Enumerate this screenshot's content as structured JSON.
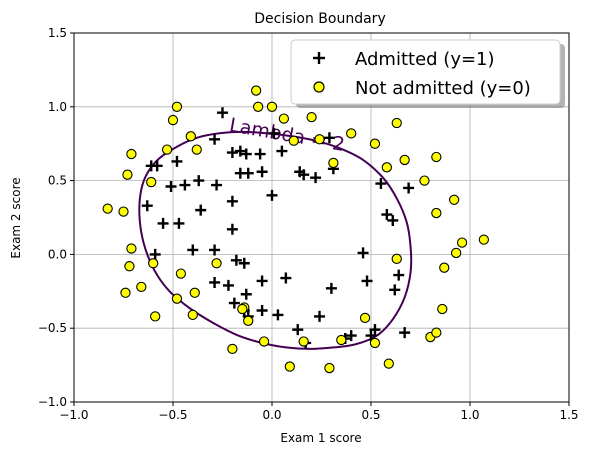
{
  "chart_data": {
    "type": "scatter",
    "title": "Decision Boundary",
    "xlabel": "Exam 1 score",
    "ylabel": "Exam 2 score",
    "xlim": [
      -1.0,
      1.5
    ],
    "ylim": [
      -1.0,
      1.5
    ],
    "xticks": [
      -1.0,
      -0.5,
      0.0,
      0.5,
      1.0,
      1.5
    ],
    "yticks": [
      -1.0,
      -0.5,
      0.0,
      0.5,
      1.0,
      1.5
    ],
    "xtick_labels": [
      "−1.0",
      "−0.5",
      "0.0",
      "0.5",
      "1.0",
      "1.5"
    ],
    "ytick_labels": [
      "−1.0",
      "−0.5",
      "0.0",
      "0.5",
      "1.0",
      "1.5"
    ],
    "grid": true,
    "legend_position": "top-right",
    "series": [
      {
        "name": "Admitted (y=1)",
        "marker": "plus",
        "color": "#000000",
        "points": [
          [
            -0.25,
            0.96
          ],
          [
            -0.29,
            0.78
          ],
          [
            -0.48,
            0.63
          ],
          [
            -0.61,
            0.6
          ],
          [
            -0.58,
            0.6
          ],
          [
            -0.2,
            0.69
          ],
          [
            -0.16,
            0.7
          ],
          [
            -0.13,
            0.68
          ],
          [
            -0.06,
            0.68
          ],
          [
            0.01,
            0.82
          ],
          [
            0.05,
            0.7
          ],
          [
            0.14,
            0.56
          ],
          [
            0.16,
            0.54
          ],
          [
            0.22,
            0.52
          ],
          [
            0.29,
            0.79
          ],
          [
            0.31,
            0.58
          ],
          [
            -0.51,
            0.46
          ],
          [
            -0.44,
            0.47
          ],
          [
            -0.37,
            0.5
          ],
          [
            -0.28,
            0.47
          ],
          [
            -0.16,
            0.55
          ],
          [
            -0.12,
            0.55
          ],
          [
            -0.05,
            0.56
          ],
          [
            -0.63,
            0.33
          ],
          [
            -0.55,
            0.21
          ],
          [
            -0.47,
            0.21
          ],
          [
            -0.36,
            0.3
          ],
          [
            -0.2,
            0.36
          ],
          [
            0.0,
            0.4
          ],
          [
            0.69,
            0.45
          ],
          [
            0.55,
            0.48
          ],
          [
            0.58,
            0.27
          ],
          [
            0.61,
            0.23
          ],
          [
            -0.59,
            0.0
          ],
          [
            -0.4,
            0.03
          ],
          [
            -0.29,
            0.03
          ],
          [
            -0.2,
            0.17
          ],
          [
            -0.18,
            -0.04
          ],
          [
            -0.14,
            -0.06
          ],
          [
            -0.29,
            -0.19
          ],
          [
            -0.22,
            -0.21
          ],
          [
            -0.19,
            -0.33
          ],
          [
            -0.13,
            -0.27
          ],
          [
            -0.05,
            -0.18
          ],
          [
            0.07,
            -0.16
          ],
          [
            0.3,
            -0.23
          ],
          [
            0.46,
            0.01
          ],
          [
            0.48,
            -0.18
          ],
          [
            0.64,
            -0.14
          ],
          [
            0.62,
            -0.24
          ],
          [
            -0.14,
            -0.38
          ],
          [
            -0.12,
            -0.42
          ],
          [
            -0.05,
            -0.38
          ],
          [
            0.03,
            -0.41
          ],
          [
            0.13,
            -0.51
          ],
          [
            0.17,
            -0.6
          ],
          [
            0.24,
            -0.42
          ],
          [
            0.37,
            -0.57
          ],
          [
            0.4,
            -0.55
          ],
          [
            0.5,
            -0.55
          ],
          [
            0.52,
            -0.51
          ],
          [
            0.67,
            -0.53
          ]
        ]
      },
      {
        "name": "Not admitted (y=0)",
        "marker": "circle",
        "color": "#ffff00",
        "edge": "#000000",
        "points": [
          [
            -0.83,
            0.31
          ],
          [
            -0.75,
            0.29
          ],
          [
            -0.73,
            0.54
          ],
          [
            -0.71,
            0.68
          ],
          [
            -0.71,
            0.04
          ],
          [
            -0.72,
            -0.08
          ],
          [
            -0.66,
            -0.22
          ],
          [
            -0.74,
            -0.26
          ],
          [
            -0.61,
            0.49
          ],
          [
            -0.6,
            -0.06
          ],
          [
            -0.59,
            -0.42
          ],
          [
            -0.53,
            0.71
          ],
          [
            -0.5,
            0.91
          ],
          [
            -0.48,
            1.0
          ],
          [
            -0.46,
            -0.13
          ],
          [
            -0.48,
            -0.3
          ],
          [
            -0.41,
            0.8
          ],
          [
            -0.38,
            0.71
          ],
          [
            -0.39,
            -0.26
          ],
          [
            -0.4,
            -0.41
          ],
          [
            -0.28,
            -0.06
          ],
          [
            -0.14,
            -0.36
          ],
          [
            -0.12,
            -0.45
          ],
          [
            -0.2,
            -0.64
          ],
          [
            -0.07,
            1.0
          ],
          [
            -0.08,
            1.11
          ],
          [
            0.0,
            1.0
          ],
          [
            0.06,
            0.92
          ],
          [
            0.11,
            0.77
          ],
          [
            0.2,
            0.93
          ],
          [
            0.24,
            0.78
          ],
          [
            0.31,
            0.62
          ],
          [
            0.4,
            0.82
          ],
          [
            0.52,
            0.75
          ],
          [
            0.58,
            0.59
          ],
          [
            0.63,
            0.89
          ],
          [
            0.67,
            0.64
          ],
          [
            0.77,
            0.5
          ],
          [
            0.83,
            0.66
          ],
          [
            0.83,
            0.28
          ],
          [
            0.92,
            0.37
          ],
          [
            0.93,
            0.01
          ],
          [
            0.96,
            0.08
          ],
          [
            1.07,
            0.1
          ],
          [
            0.87,
            -0.09
          ],
          [
            0.63,
            -0.03
          ],
          [
            0.47,
            -0.43
          ],
          [
            0.35,
            -0.58
          ],
          [
            0.52,
            -0.6
          ],
          [
            0.59,
            -0.74
          ],
          [
            0.8,
            -0.56
          ],
          [
            0.83,
            -0.53
          ],
          [
            0.86,
            -0.37
          ],
          [
            0.29,
            -0.77
          ],
          [
            0.16,
            -0.59
          ],
          [
            0.09,
            -0.76
          ],
          [
            -0.04,
            -0.59
          ],
          [
            -0.15,
            -0.37
          ]
        ]
      }
    ],
    "boundary": {
      "label": "Lambda = 2",
      "color": "#440154",
      "points": [
        [
          -0.63,
          0.55
        ],
        [
          -0.57,
          0.65
        ],
        [
          -0.48,
          0.73
        ],
        [
          -0.38,
          0.79
        ],
        [
          -0.27,
          0.82
        ],
        [
          -0.15,
          0.83
        ],
        [
          -0.02,
          0.82
        ],
        [
          0.1,
          0.8
        ],
        [
          0.22,
          0.77
        ],
        [
          0.34,
          0.72
        ],
        [
          0.46,
          0.64
        ],
        [
          0.56,
          0.52
        ],
        [
          0.63,
          0.38
        ],
        [
          0.68,
          0.22
        ],
        [
          0.7,
          0.05
        ],
        [
          0.7,
          -0.12
        ],
        [
          0.67,
          -0.29
        ],
        [
          0.61,
          -0.44
        ],
        [
          0.53,
          -0.55
        ],
        [
          0.42,
          -0.61
        ],
        [
          0.31,
          -0.63
        ],
        [
          0.19,
          -0.64
        ],
        [
          0.07,
          -0.63
        ],
        [
          -0.05,
          -0.6
        ],
        [
          -0.17,
          -0.55
        ],
        [
          -0.29,
          -0.47
        ],
        [
          -0.41,
          -0.37
        ],
        [
          -0.51,
          -0.26
        ],
        [
          -0.58,
          -0.14
        ],
        [
          -0.63,
          0.0
        ],
        [
          -0.66,
          0.15
        ],
        [
          -0.67,
          0.3
        ],
        [
          -0.66,
          0.44
        ],
        [
          -0.63,
          0.55
        ]
      ]
    }
  }
}
